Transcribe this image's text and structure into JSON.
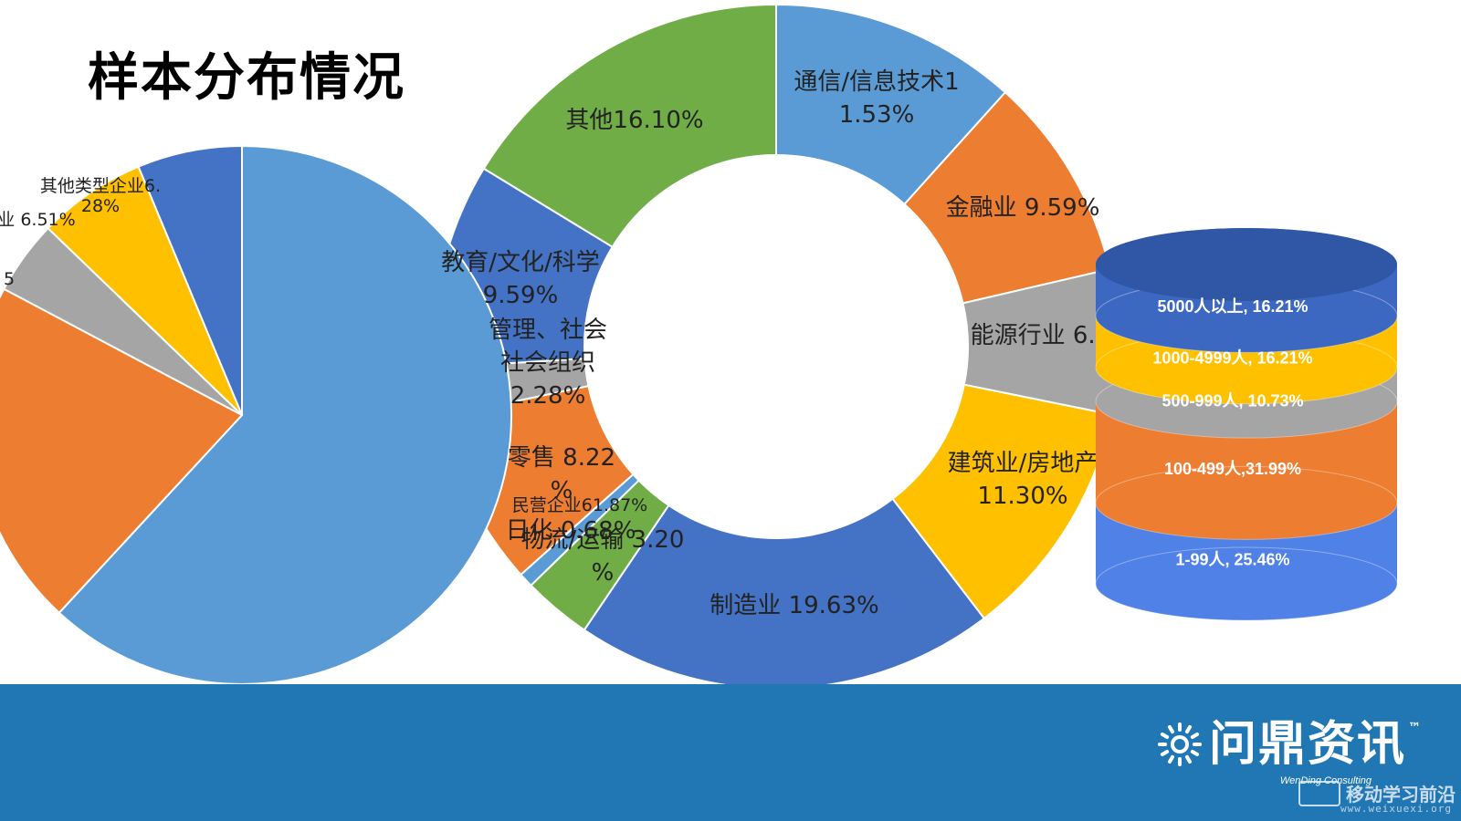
{
  "page": {
    "title": "样本分布情况"
  },
  "brand": {
    "name": "问鼎资讯",
    "tm": "™",
    "subtitle": "WenDing Consulting"
  },
  "watermark": {
    "text": "移动学习前沿",
    "url": "www.weixuexi.org"
  },
  "colors": {
    "blue_light": "#5b9bd5",
    "orange": "#ed7d31",
    "gray": "#a5a5a5",
    "yellow": "#ffc000",
    "blue_dark": "#4472c4",
    "green": "#70ad47",
    "footer": "#2177b4"
  },
  "chart_data": [
    {
      "type": "pie",
      "name": "industry-donut",
      "segments": [
        {
          "label_lines": [
            "通信/信息技术1",
            "1.53%"
          ],
          "value": 11.53,
          "color": "#5b9bd5"
        },
        {
          "label_lines": [
            "金融业 9.59%"
          ],
          "value": 9.59,
          "color": "#ed7d31"
        },
        {
          "label_lines": [
            "能源行业 6.74%"
          ],
          "value": 6.74,
          "color": "#a5a5a5"
        },
        {
          "label_lines": [
            "建筑业/房地产",
            "11.30%"
          ],
          "value": 11.3,
          "color": "#ffc000"
        },
        {
          "label_lines": [
            "制造业 19.63%"
          ],
          "value": 19.63,
          "color": "#4472c4"
        },
        {
          "label_lines": [
            "物流/运输 3.20",
            "%"
          ],
          "value": 3.2,
          "color": "#70ad47"
        },
        {
          "label_lines": [
            "日化 0.68%"
          ],
          "value": 0.68,
          "color": "#5b9bd5"
        },
        {
          "label_lines": [
            "零售 8.22",
            "%"
          ],
          "value": 8.22,
          "color": "#ed7d31"
        },
        {
          "label_lines": [
            "管理、社会",
            "社会组织",
            "2.28%"
          ],
          "value": 2.28,
          "color": "#a5a5a5"
        },
        {
          "label_lines": [
            "教育/文化/科学",
            "9.59%"
          ],
          "value": 9.59,
          "color": "#4472c4"
        },
        {
          "label_lines": [
            "其他16.10%"
          ],
          "value": 16.1,
          "color": "#70ad47"
        }
      ]
    },
    {
      "type": "pie",
      "name": "enterprise-type-pie",
      "segments": [
        {
          "label_lines": [
            "民营企业61.87%"
          ],
          "value": 61.87,
          "color": "#5b9bd5"
        },
        {
          "label_lines": [
            ""
          ],
          "value": 20.89,
          "color": "#ed7d31"
        },
        {
          "label_lines": [
            "5"
          ],
          "value": 4.45,
          "color": "#a5a5a5"
        },
        {
          "label_lines": [
            "业 6.51%"
          ],
          "value": 6.51,
          "color": "#ffc000"
        },
        {
          "label_lines": [
            "其他类型企业6.",
            "28%"
          ],
          "value": 6.28,
          "color": "#4472c4"
        }
      ]
    },
    {
      "type": "bar",
      "name": "company-size-stack",
      "layers": [
        {
          "label": "1-99人, 25.46%",
          "value": 25.46,
          "color": "#4f81e6"
        },
        {
          "label": "100-499人,31.99%",
          "value": 31.99,
          "color": "#ed7d31"
        },
        {
          "label": "500-999人, 10.73%",
          "value": 10.73,
          "color": "#a5a5a5"
        },
        {
          "label": "1000-4999人, 16.21%",
          "value": 16.21,
          "color": "#ffc000"
        },
        {
          "label": "5000人以上, 16.21%",
          "value": 16.21,
          "color": "#3d68c2"
        }
      ]
    }
  ]
}
